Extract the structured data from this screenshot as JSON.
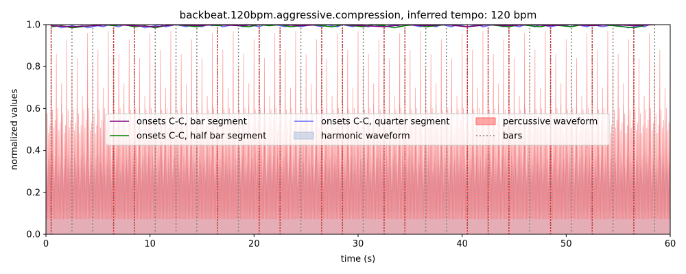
{
  "chart_data": {
    "type": "line",
    "title": "backbeat.120bpm.aggressive.compression, inferred tempo: 120 bpm",
    "xlabel": "time (s)",
    "ylabel": "normalized values",
    "xlim": [
      0,
      60
    ],
    "ylim": [
      0,
      1.0
    ],
    "x_ticks": [
      0,
      10,
      20,
      30,
      40,
      50,
      60
    ],
    "x_tick_labels": [
      "0",
      "10",
      "20",
      "30",
      "40",
      "50",
      "60"
    ],
    "y_ticks": [
      0.0,
      0.2,
      0.4,
      0.6,
      0.8,
      1.0
    ],
    "y_tick_labels": [
      "0.0",
      "0.2",
      "0.4",
      "0.6",
      "0.8",
      "1.0"
    ],
    "grid": false,
    "legend_placement": "center",
    "tempo_bpm": 120,
    "beat_period_s": 0.5,
    "bar_period_s": 2.0,
    "first_bar_s": 0.5,
    "series": [
      {
        "name": "onsets C-C, bar segment",
        "kind": "line",
        "color": "#800080",
        "x": [
          0.5,
          2.5,
          4.5,
          6.5,
          8.5,
          10.5,
          12.5,
          14.5,
          16.5,
          18.5,
          20.5,
          22.5,
          24.5,
          26.5,
          28.5,
          30.5,
          32.5,
          34.5,
          36.5,
          38.5,
          40.5,
          42.5,
          44.5,
          46.5,
          48.5,
          50.5,
          52.5,
          54.5,
          56.5,
          58.5
        ],
        "y": [
          0.995,
          0.99,
          0.995,
          1.0,
          0.995,
          0.99,
          1.0,
          0.995,
          1.0,
          0.995,
          1.0,
          1.0,
          0.995,
          1.0,
          1.0,
          0.995,
          0.99,
          1.0,
          0.995,
          1.0,
          0.99,
          1.0,
          0.995,
          1.0,
          0.995,
          1.0,
          0.995,
          1.0,
          0.995,
          1.0
        ]
      },
      {
        "name": "onsets C-C, half bar segment",
        "kind": "line",
        "color": "#008000",
        "x": [
          0.5,
          1.5,
          2.5,
          3.5,
          4.5,
          5.5,
          6.5,
          7.5,
          8.5,
          9.5,
          10.5,
          11.5,
          12.5,
          13.5,
          14.5,
          15.5,
          16.5,
          17.5,
          18.5,
          19.5,
          20.5,
          21.5,
          22.5,
          23.5,
          24.5,
          25.5,
          26.5,
          27.5,
          28.5,
          29.5,
          30.5,
          31.5,
          32.5,
          33.5,
          34.5,
          35.5,
          36.5,
          37.5,
          38.5,
          39.5,
          40.5,
          41.5,
          42.5,
          43.5,
          44.5,
          45.5,
          46.5,
          47.5,
          48.5,
          49.5,
          50.5,
          51.5,
          52.5,
          53.5,
          54.5,
          55.5,
          56.5,
          57.5
        ],
        "y": [
          0.99,
          0.995,
          0.985,
          0.99,
          0.995,
          1.0,
          0.995,
          1.0,
          0.99,
          0.995,
          0.985,
          0.995,
          1.0,
          0.995,
          0.99,
          1.0,
          0.995,
          1.0,
          0.995,
          0.99,
          1.0,
          0.995,
          1.0,
          0.99,
          0.995,
          1.0,
          0.995,
          0.99,
          1.0,
          0.995,
          0.99,
          1.0,
          0.995,
          0.985,
          0.995,
          1.0,
          0.99,
          0.995,
          1.0,
          0.995,
          0.99,
          0.995,
          1.0,
          0.995,
          0.99,
          1.0,
          0.995,
          0.99,
          1.0,
          0.995,
          0.99,
          1.0,
          0.995,
          1.0,
          0.995,
          0.99,
          0.985,
          0.995
        ]
      },
      {
        "name": "onsets C-C, quarter segment",
        "kind": "line",
        "color": "#6464ff",
        "x": [
          0.5,
          1.0,
          1.5,
          2.0,
          2.5,
          3.0,
          3.5,
          4.0,
          4.5,
          5.0,
          5.5,
          6.0,
          6.5,
          7.0,
          7.5,
          8.0,
          8.5,
          9.0,
          9.5,
          10.0,
          10.5,
          11.0,
          11.5,
          12.0,
          12.5,
          13.0,
          13.5,
          14.0,
          14.5,
          15.0,
          15.5,
          16.0,
          16.5,
          17.0,
          17.5,
          18.0,
          18.5,
          19.0,
          19.5,
          20.0,
          20.5,
          21.0,
          21.5,
          22.0,
          22.5,
          23.0,
          23.5,
          24.0,
          24.5,
          25.0,
          25.5,
          26.0,
          26.5,
          27.0,
          27.5,
          28.0,
          28.5,
          29.0,
          29.5,
          30.0,
          30.5,
          31.0,
          31.5,
          32.0,
          32.5,
          33.0,
          33.5,
          34.0,
          34.5,
          35.0,
          35.5,
          36.0,
          36.5,
          37.0,
          37.5,
          38.0,
          38.5,
          39.0,
          39.5,
          40.0,
          40.5,
          41.0,
          41.5,
          42.0,
          42.5,
          43.0,
          43.5,
          44.0,
          44.5,
          45.0,
          45.5,
          46.0,
          46.5,
          47.0,
          47.5,
          48.0,
          48.5,
          49.0,
          49.5,
          50.0,
          50.5,
          51.0,
          51.5,
          52.0,
          52.5,
          53.0,
          53.5,
          54.0,
          54.5,
          55.0,
          55.5,
          56.0,
          56.5,
          57.0,
          57.5,
          58.0
        ],
        "y": [
          0.99,
          0.995,
          0.985,
          0.99,
          0.995,
          0.99,
          0.995,
          0.985,
          0.99,
          0.995,
          0.99,
          1.0,
          0.995,
          0.99,
          1.0,
          0.995,
          0.99,
          0.995,
          0.985,
          0.99,
          0.995,
          1.0,
          0.99,
          0.995,
          1.0,
          0.995,
          0.99,
          1.0,
          0.995,
          0.99,
          1.0,
          0.995,
          1.0,
          0.99,
          0.995,
          1.0,
          0.995,
          0.99,
          1.0,
          0.995,
          0.99,
          1.0,
          0.995,
          1.0,
          0.995,
          0.99,
          1.0,
          0.995,
          0.99,
          0.995,
          1.0,
          0.995,
          0.99,
          1.0,
          0.995,
          0.99,
          1.0,
          0.995,
          0.99,
          1.0,
          0.995,
          0.99,
          1.0,
          0.995,
          0.99,
          0.995,
          1.0,
          0.99,
          0.995,
          1.0,
          0.995,
          0.99,
          1.0,
          0.995,
          0.99,
          1.0,
          0.995,
          0.99,
          1.0,
          0.995,
          0.99,
          0.995,
          1.0,
          0.99,
          0.995,
          1.0,
          0.995,
          0.99,
          1.0,
          0.995,
          0.99,
          1.0,
          0.995,
          0.99,
          1.0,
          0.995,
          0.99,
          0.995,
          1.0,
          0.995,
          0.99,
          1.0,
          0.995,
          0.99,
          1.0,
          0.995,
          0.99,
          0.995,
          1.0,
          0.995,
          0.99,
          0.985,
          0.99,
          0.995,
          0.99,
          1.0
        ]
      },
      {
        "name": "harmonic waveform",
        "kind": "area",
        "color": "#b0c4de",
        "peak_values": [
          0.5,
          0.6,
          0.55,
          0.62,
          0.52,
          0.58,
          0.6,
          0.5,
          0.62,
          0.55,
          0.6,
          0.54
        ]
      },
      {
        "name": "percussive waveform",
        "kind": "area",
        "color": "#ff6464",
        "peak_values": [
          0.97,
          0.8,
          0.86,
          0.72,
          0.93,
          0.78,
          0.84,
          0.66,
          0.96,
          0.82,
          0.88,
          0.7
        ]
      },
      {
        "name": "bars",
        "kind": "vlines",
        "color": "#808080",
        "x": [
          0.5,
          2.5,
          4.5,
          6.5,
          8.5,
          10.5,
          12.5,
          14.5,
          16.5,
          18.5,
          20.5,
          22.5,
          24.5,
          26.5,
          28.5,
          30.5,
          32.5,
          34.5,
          36.5,
          38.5,
          40.5,
          42.5,
          44.5,
          46.5,
          48.5,
          50.5,
          52.5,
          54.5,
          56.5,
          58.5
        ]
      }
    ],
    "overlay_lines": {
      "color": "#e03030",
      "x": [
        0.5,
        6.5,
        8.5,
        16.5,
        20.5,
        22.5,
        26.5,
        28.5,
        32.5,
        34.5,
        40.5,
        42.5,
        44.5,
        48.5,
        52.5,
        56.5
      ]
    },
    "legend": {
      "placement": "center",
      "entries": [
        {
          "label": "onsets C-C, bar segment",
          "swatch": "line",
          "color": "#800080"
        },
        {
          "label": "onsets C-C, half bar segment",
          "swatch": "line",
          "color": "#008000"
        },
        {
          "label": "onsets C-C, quarter segment",
          "swatch": "line",
          "color": "#6464ff"
        },
        {
          "label": "harmonic waveform",
          "swatch": "patch",
          "color": "#b0c4de"
        },
        {
          "label": "percussive waveform",
          "swatch": "patch",
          "color": "#ff6464"
        },
        {
          "label": "bars",
          "swatch": "dotted",
          "color": "#808080"
        }
      ]
    }
  }
}
